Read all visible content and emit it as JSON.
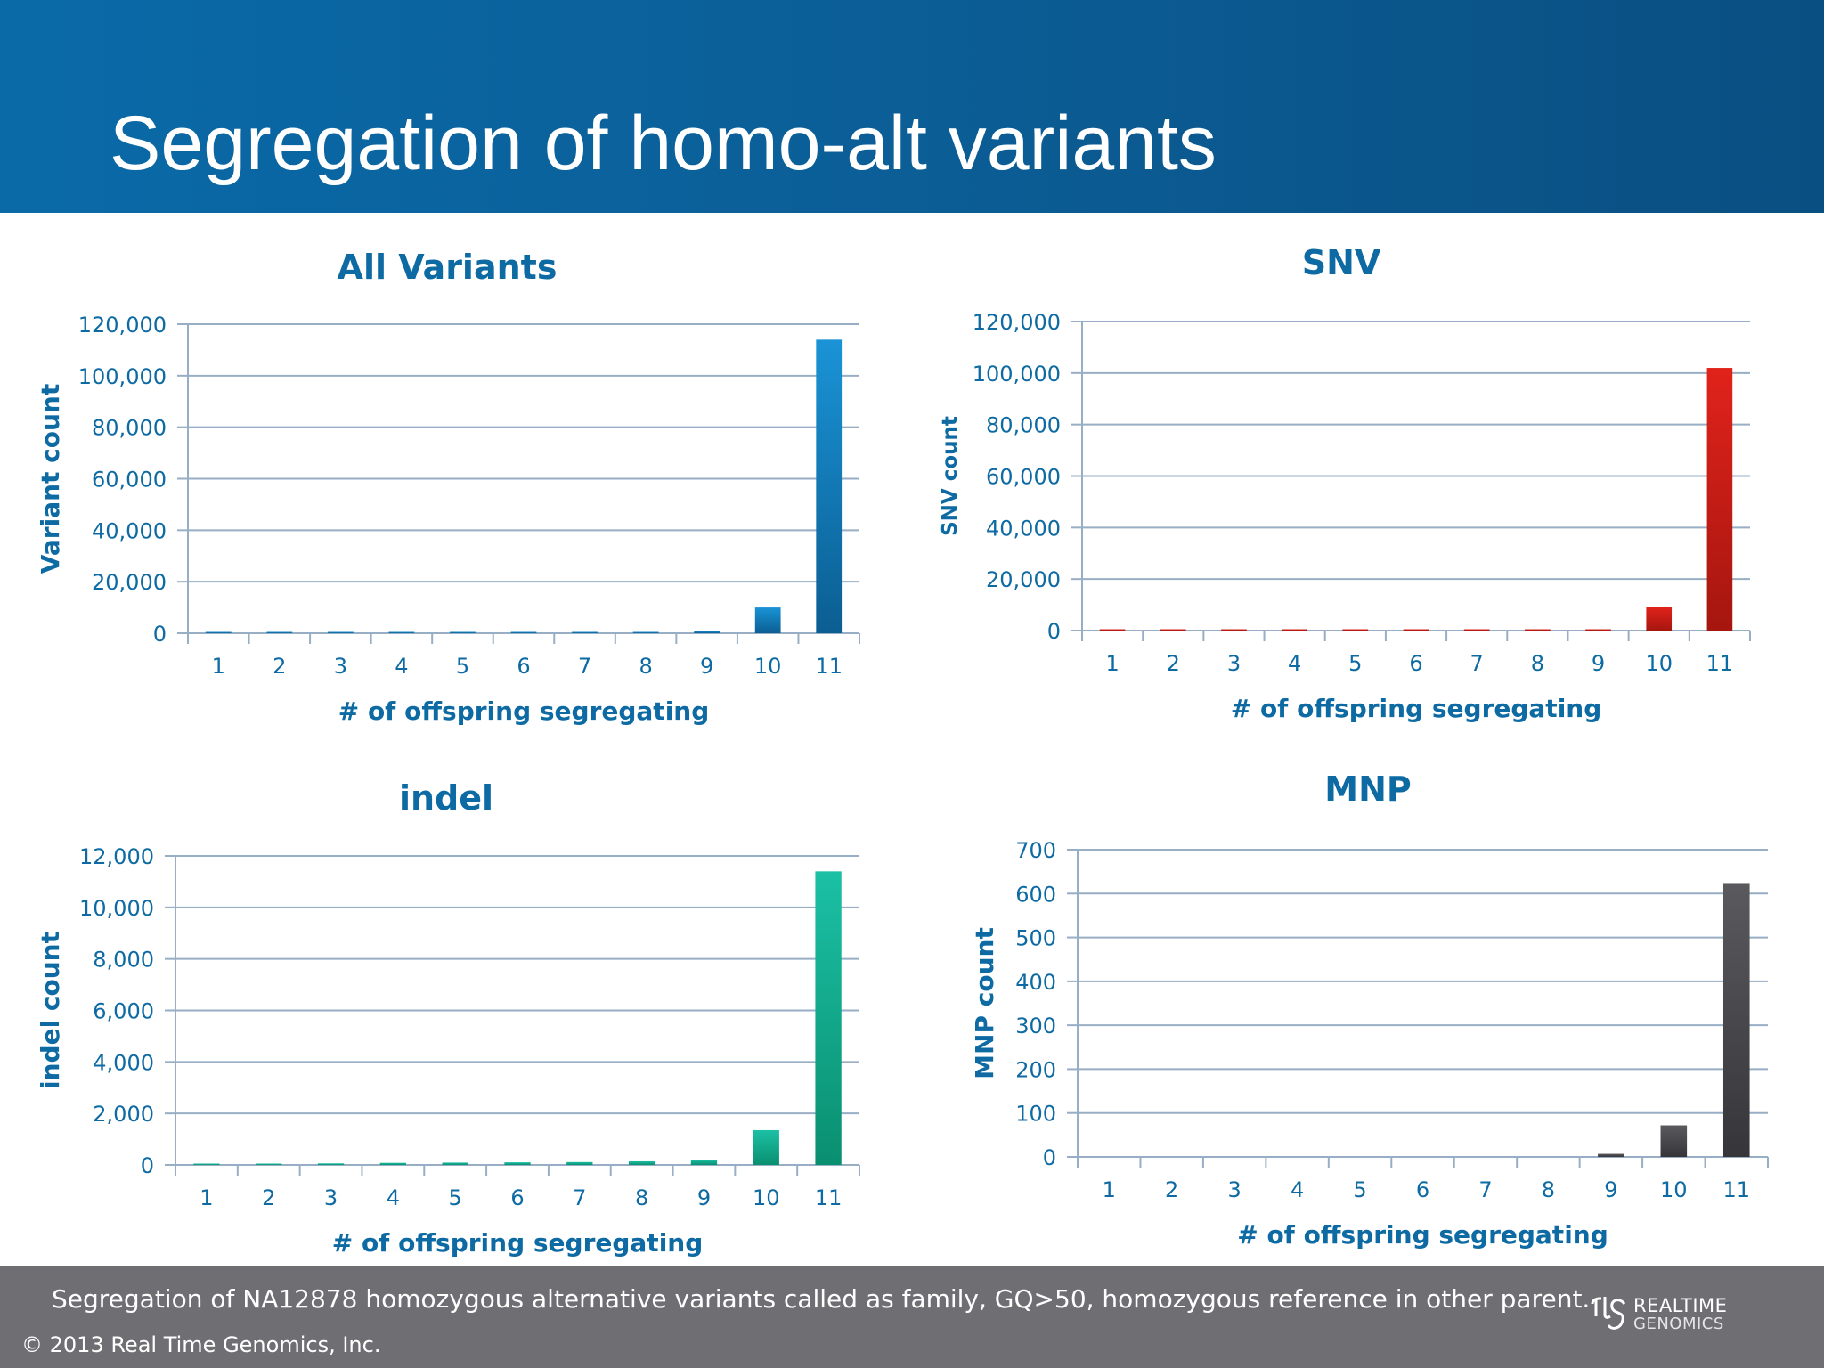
{
  "page": {
    "title": "Segregation of homo-alt variants",
    "caption": "Segregation of NA12878 homozygous alternative variants called as family, GQ>50, homozygous reference in other parent.",
    "copyright": "© 2013 Real Time Genomics, Inc.",
    "logo": {
      "line1": "REALTIME",
      "line2": "GENOMICS",
      "icon": "rtg-logo-icon"
    }
  },
  "chart_data": [
    {
      "type": "bar",
      "title": "All Variants",
      "xlabel": "# of offspring segregating",
      "ylabel": "Variant count",
      "categories": [
        "1",
        "2",
        "3",
        "4",
        "5",
        "6",
        "7",
        "8",
        "9",
        "10",
        "11"
      ],
      "values": [
        100,
        150,
        200,
        250,
        300,
        350,
        400,
        500,
        900,
        10000,
        114000
      ],
      "ylim": [
        0,
        120000
      ],
      "yticks": [
        "0",
        "20,000",
        "40,000",
        "60,000",
        "80,000",
        "100,000",
        "120,000"
      ],
      "grid": true,
      "color_top": "#1a93d6",
      "color_bottom": "#0b5e92"
    },
    {
      "type": "bar",
      "title": "SNV",
      "xlabel": "# of offspring segregating",
      "ylabel": "SNV count",
      "categories": [
        "1",
        "2",
        "3",
        "4",
        "5",
        "6",
        "7",
        "8",
        "9",
        "10",
        "11"
      ],
      "values": [
        50,
        80,
        100,
        120,
        150,
        150,
        200,
        250,
        400,
        9000,
        102000
      ],
      "ylim": [
        0,
        120000
      ],
      "yticks": [
        "0",
        "20,000",
        "40,000",
        "60,000",
        "80,000",
        "100,000",
        "120,000"
      ],
      "grid": true,
      "color_top": "#e0231b",
      "color_bottom": "#a5160f"
    },
    {
      "type": "bar",
      "title": "indel",
      "xlabel": "# of offspring segregating",
      "ylabel": "indel count",
      "categories": [
        "1",
        "2",
        "3",
        "4",
        "5",
        "6",
        "7",
        "8",
        "9",
        "10",
        "11"
      ],
      "values": [
        30,
        40,
        60,
        80,
        90,
        100,
        110,
        140,
        200,
        1350,
        11400
      ],
      "ylim": [
        0,
        12000
      ],
      "yticks": [
        "0",
        "2,000",
        "4,000",
        "6,000",
        "8,000",
        "10,000",
        "12,000"
      ],
      "grid": true,
      "color_top": "#1bc0a5",
      "color_bottom": "#0a8f70"
    },
    {
      "type": "bar",
      "title": "MNP",
      "xlabel": "# of offspring segregating",
      "ylabel": "MNP count",
      "categories": [
        "1",
        "2",
        "3",
        "4",
        "5",
        "6",
        "7",
        "8",
        "9",
        "10",
        "11"
      ],
      "values": [
        0,
        0,
        0,
        0,
        0,
        0,
        0,
        0,
        7,
        72,
        622
      ],
      "ylim": [
        0,
        700
      ],
      "yticks": [
        "0",
        "100",
        "200",
        "300",
        "400",
        "500",
        "600",
        "700"
      ],
      "grid": true,
      "color_top": "#5a5a5e",
      "color_bottom": "#36363a"
    }
  ]
}
